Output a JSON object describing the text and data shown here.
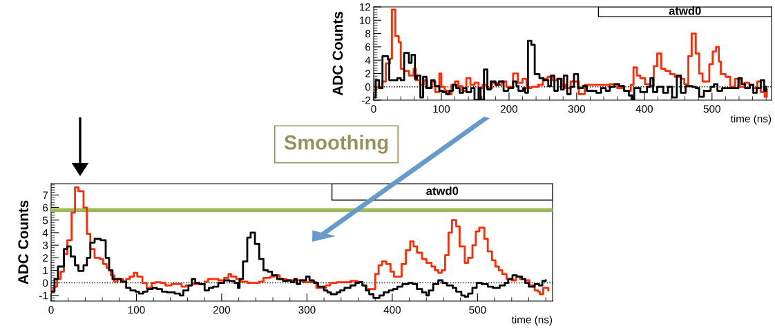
{
  "chart_data": [
    {
      "type": "step",
      "title": "atwd0",
      "ylabel": "ADC Counts",
      "xlabel": "time (ns)",
      "xlim": [
        0,
        588
      ],
      "ylim": [
        -2,
        12
      ],
      "xticks": [
        0,
        100,
        200,
        300,
        400,
        500
      ],
      "yticks": [
        -2,
        0,
        2,
        4,
        6,
        8,
        10,
        12
      ],
      "grid": false,
      "legend": false,
      "ref_lines": [
        {
          "axis": "y",
          "value": 0,
          "color": "#000000",
          "line_style": "dotted"
        }
      ],
      "series": [
        {
          "color": "#ff2a00",
          "x": [
            0,
            4,
            10,
            13,
            18,
            24,
            27,
            32,
            37,
            40,
            45,
            52,
            59,
            62,
            69,
            74,
            79,
            86,
            91,
            97,
            100,
            105,
            110,
            115,
            120,
            125,
            131,
            137,
            143,
            149,
            155,
            161,
            168,
            175,
            182,
            189,
            196,
            206,
            213,
            220,
            226,
            233,
            243,
            250,
            257,
            264,
            271,
            278,
            284,
            291,
            303,
            312,
            332,
            349,
            360,
            370,
            380,
            384,
            389,
            394,
            401,
            409,
            414,
            419,
            425,
            431,
            438,
            445,
            454,
            459,
            465,
            470,
            476,
            481,
            486,
            496,
            501,
            506,
            510,
            513,
            520,
            527,
            534,
            541,
            548,
            555,
            561,
            567,
            572,
            578,
            581
          ],
          "values": [
            -0.5,
            0,
            -0.2,
            0.8,
            3.5,
            4.2,
            11.6,
            7.6,
            6.7,
            2.7,
            2.4,
            1.7,
            2.7,
            1,
            0.3,
            1,
            -0.2,
            0.8,
            -0.8,
            2,
            0,
            -0.6,
            -1.1,
            0.3,
            0.8,
            0.1,
            -0.6,
            1.3,
            0.3,
            0.6,
            -0.2,
            0.3,
            -0.2,
            0.6,
            0.3,
            0.8,
            0,
            2,
            0.6,
            1.2,
            -0.2,
            0,
            0.3,
            1.2,
            1.5,
            1,
            1.2,
            0.3,
            -0.2,
            0.8,
            -1.1,
            0.3,
            0.3,
            0.4,
            -0.2,
            -0.6,
            0.3,
            2.9,
            1.7,
            1.3,
            0.4,
            0.1,
            3.1,
            5,
            2.7,
            2.4,
            1.9,
            1.5,
            1.2,
            0.4,
            4.6,
            8,
            5,
            2,
            0.8,
            3.4,
            5.3,
            6,
            3.8,
            1.9,
            1.5,
            0,
            1.2,
            0,
            0.6,
            0.3,
            -0.2,
            0.8,
            -0.8,
            -1.5,
            -0.4
          ]
        },
        {
          "color": "#000000",
          "x": [
            0,
            3,
            8,
            13,
            21,
            23,
            35,
            40,
            45,
            52,
            56,
            61,
            64,
            69,
            73,
            78,
            85,
            90,
            97,
            102,
            107,
            112,
            117,
            122,
            127,
            132,
            137,
            144,
            149,
            155,
            158,
            163,
            168,
            173,
            180,
            185,
            192,
            199,
            206,
            211,
            214,
            221,
            224,
            228,
            233,
            238,
            245,
            251,
            258,
            262,
            267,
            272,
            277,
            281,
            286,
            291,
            296,
            302,
            309,
            315,
            329,
            336,
            343,
            349,
            356,
            363,
            370,
            377,
            382,
            385,
            394,
            404,
            409,
            413,
            419,
            428,
            435,
            441,
            448,
            454,
            461,
            471,
            476,
            481,
            488,
            498,
            503,
            508,
            515,
            532,
            539,
            544,
            549,
            556,
            561,
            566,
            572,
            577,
            580
          ],
          "values": [
            -1.6,
            1,
            -0.2,
            4.6,
            4.1,
            1,
            1.3,
            1,
            5.1,
            3.6,
            4.8,
            1.2,
            1.7,
            -1.6,
            1.5,
            -0.2,
            1,
            0.1,
            -0.6,
            -0.8,
            -1.1,
            -0.6,
            0.3,
            -0.2,
            -0.9,
            -0.2,
            -0.8,
            -0.2,
            -2,
            -0.2,
            -2,
            2.6,
            -0.4,
            0.8,
            0.3,
            0.8,
            -0.6,
            -0.2,
            0.8,
            0.1,
            -0.6,
            -0.2,
            -0.9,
            6.9,
            6.3,
            1.9,
            1.3,
            1,
            0.1,
            1.7,
            -0.6,
            1.2,
            -0.4,
            1.7,
            -1.1,
            0,
            1.9,
            -0.2,
            0.1,
            -0.6,
            -0.9,
            -0.2,
            -0.6,
            0,
            0.4,
            0.1,
            -0.6,
            -1.3,
            -2,
            -0.2,
            -0.8,
            0,
            1.3,
            -0.8,
            0,
            -0.9,
            0,
            -1.6,
            1.7,
            -0.9,
            0.1,
            0,
            -0.2,
            -1.5,
            -0.6,
            0,
            0.4,
            -0.6,
            -0.2,
            -0.2,
            1.3,
            0.4,
            -0.2,
            0.3,
            -0.9,
            -0.2,
            1,
            -0.6,
            0
          ]
        }
      ]
    },
    {
      "type": "step",
      "title": "atwd0",
      "ylabel": "ADC Counts",
      "xlabel": "time (ns)",
      "xlim": [
        0,
        588
      ],
      "ylim": [
        -1.45,
        7.9
      ],
      "xticks": [
        0,
        100,
        200,
        300,
        400,
        500
      ],
      "yticks": [
        -1,
        0,
        1,
        2,
        3,
        4,
        5,
        6,
        7
      ],
      "grid": false,
      "legend": false,
      "annotations": [
        "Smoothing"
      ],
      "ref_lines": [
        {
          "axis": "y",
          "value": 0,
          "color": "#000000",
          "line_style": "dotted"
        },
        {
          "axis": "y",
          "value": 5.8,
          "color": "#9bbb59",
          "line_style": "solid"
        }
      ],
      "series": [
        {
          "color": "#ff2a00",
          "x": [
            0,
            3,
            7,
            11,
            15,
            19,
            24,
            28,
            32,
            38,
            42,
            46,
            51,
            57,
            61,
            65,
            68,
            70,
            74,
            78,
            84,
            88,
            92,
            97,
            101,
            107,
            112,
            118,
            122,
            128,
            134,
            141,
            149,
            153,
            158,
            165,
            171,
            180,
            184,
            196,
            203,
            208,
            211,
            217,
            222,
            230,
            238,
            244,
            249,
            257,
            262,
            268,
            276,
            286,
            295,
            311,
            322,
            327,
            335,
            351,
            359,
            365,
            370,
            380,
            384,
            388,
            393,
            398,
            402,
            411,
            416,
            421,
            425,
            429,
            435,
            440,
            446,
            450,
            454,
            458,
            462,
            466,
            470,
            475,
            479,
            485,
            489,
            494,
            498,
            502,
            508,
            512,
            517,
            521,
            525,
            529,
            534,
            540,
            545,
            550,
            556,
            561,
            567,
            571,
            573,
            577,
            583
          ],
          "values": [
            -0.6,
            -0.3,
            0.3,
            0.9,
            2.3,
            3.4,
            5.6,
            7.6,
            7.3,
            6,
            3.9,
            2.7,
            2,
            1.9,
            1.5,
            1.2,
            1,
            0.6,
            0.1,
            0.3,
            0.1,
            0.3,
            0.5,
            0.8,
            0.5,
            0,
            -0.4,
            0,
            0.05,
            0,
            -0.2,
            -0.1,
            -0.1,
            -0.3,
            -0.2,
            -0.1,
            -0.1,
            0.1,
            0.3,
            0.2,
            0.4,
            0.7,
            0.5,
            0.3,
            0.1,
            0,
            0,
            0.1,
            0.4,
            0.5,
            0.6,
            0.3,
            0.2,
            0.2,
            0.05,
            -0.4,
            -0.2,
            0,
            0.05,
            0.15,
            0.05,
            -0.2,
            -0.5,
            0.7,
            1.4,
            1.7,
            1.5,
            0.9,
            0.5,
            1.5,
            2.6,
            3.3,
            2.9,
            2.4,
            1.9,
            1.6,
            1.3,
            1,
            0.8,
            1,
            2.2,
            4,
            5,
            4.5,
            2.9,
            1.6,
            2,
            3,
            4.1,
            4.4,
            3.5,
            2.5,
            1.8,
            1.3,
            1,
            0.7,
            0.3,
            0.2,
            0.5,
            0.3,
            0.2,
            -0.2,
            -0.6,
            -0.7,
            -0.9,
            -0.4,
            -0.6
          ]
        },
        {
          "color": "#000000",
          "x": [
            0,
            4,
            8,
            15,
            19,
            23,
            28,
            32,
            38,
            42,
            46,
            51,
            58,
            64,
            68,
            72,
            77,
            82,
            88,
            93,
            99,
            103,
            108,
            113,
            119,
            124,
            130,
            136,
            145,
            151,
            155,
            161,
            165,
            169,
            174,
            180,
            185,
            190,
            196,
            203,
            209,
            215,
            219,
            221,
            225,
            230,
            234,
            239,
            244,
            249,
            254,
            259,
            265,
            272,
            277,
            281,
            285,
            288,
            292,
            299,
            303,
            308,
            313,
            320,
            324,
            328,
            335,
            339,
            344,
            351,
            357,
            361,
            365,
            369,
            373,
            378,
            385,
            390,
            396,
            401,
            406,
            412,
            419,
            424,
            429,
            435,
            440,
            443,
            448,
            454,
            459,
            464,
            471,
            475,
            481,
            485,
            489,
            494,
            499,
            505,
            512,
            518,
            526,
            532,
            536,
            541,
            546,
            552,
            556,
            560,
            567,
            572,
            576,
            580
          ],
          "values": [
            -0.7,
            0.3,
            1.3,
            2.7,
            2.9,
            2.1,
            1.4,
            0.95,
            1.4,
            2,
            3.2,
            3.5,
            3.4,
            2,
            1,
            0.3,
            0.3,
            0.1,
            -0.4,
            -0.6,
            -0.7,
            -0.85,
            -0.7,
            -0.5,
            -0.4,
            -0.5,
            -0.7,
            -0.75,
            -0.85,
            -1,
            -0.6,
            -0.2,
            0.3,
            0,
            -0.1,
            -0.6,
            -0.4,
            -0.3,
            0,
            0.2,
            0.15,
            0,
            -0.4,
            0.3,
            1.7,
            3.6,
            4,
            3.1,
            1.9,
            1,
            0.9,
            0.6,
            0.3,
            0.15,
            0.2,
            0.05,
            0.3,
            -0.1,
            0.2,
            0.5,
            0.2,
            0,
            -0.3,
            -0.6,
            -0.75,
            -0.9,
            -0.75,
            -0.6,
            -0.4,
            -0.2,
            0,
            0.05,
            -0.2,
            -0.6,
            -0.9,
            -1.2,
            -1,
            -0.75,
            -0.6,
            -0.5,
            -0.3,
            -0.1,
            0,
            -0.1,
            -0.5,
            -0.75,
            -1,
            -0.6,
            -0.1,
            0.2,
            0,
            -0.2,
            -0.4,
            -0.7,
            -1,
            -1.1,
            -0.85,
            -0.4,
            0,
            -0.1,
            -0.3,
            -0.4,
            -0.2,
            0,
            0.3,
            0.6,
            0.5,
            0.3,
            0,
            -0.3,
            -0.1,
            -0.2,
            0.15,
            0.2
          ]
        }
      ]
    }
  ]
}
